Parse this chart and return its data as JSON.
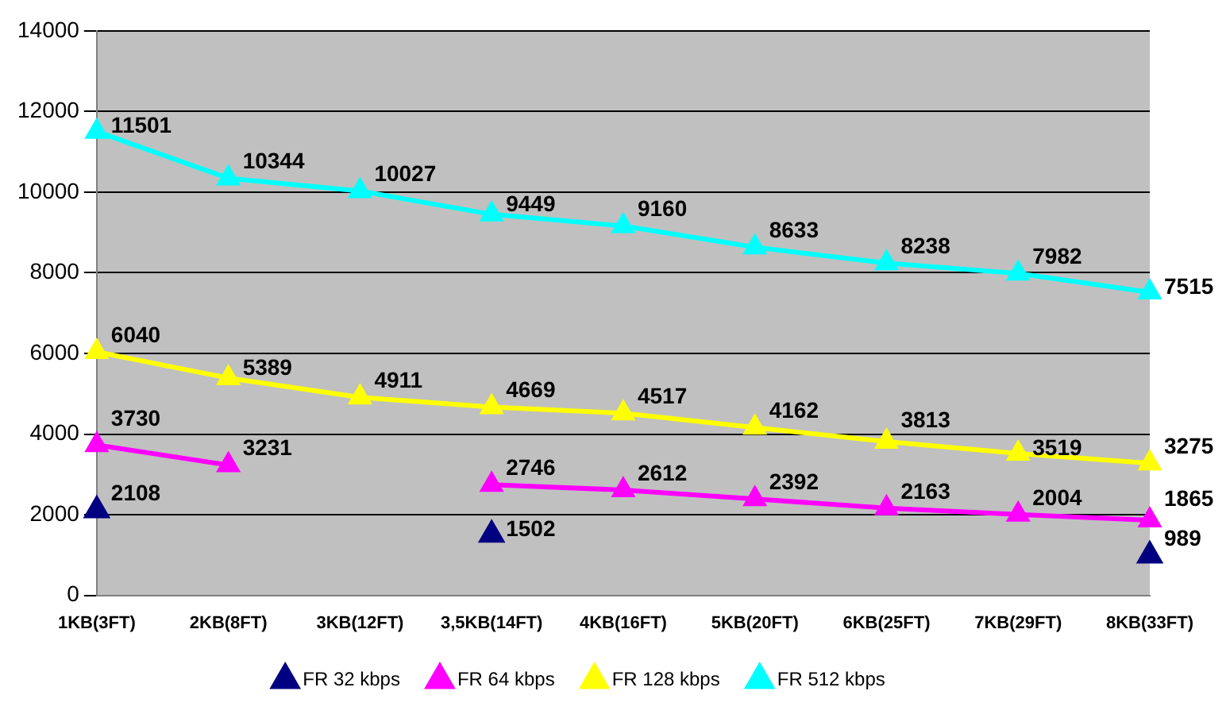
{
  "chart_data": {
    "type": "line",
    "categories": [
      "1KB(3FT)",
      "2KB(8FT)",
      "3KB(12FT)",
      "3,5KB(14FT)",
      "4KB(16FT)",
      "5KB(20FT)",
      "6KB(25FT)",
      "7KB(29FT)",
      "8KB(33FT)"
    ],
    "series": [
      {
        "name": "FR 32 kbps",
        "type": "scatter",
        "color": "#000080",
        "values": [
          2108,
          null,
          null,
          1502,
          null,
          null,
          null,
          null,
          989
        ]
      },
      {
        "name": "FR 64 kbps",
        "color": "#ff00ff",
        "values": [
          3730,
          3231,
          null,
          2746,
          2612,
          2392,
          2163,
          2004,
          1865
        ]
      },
      {
        "name": "FR 128 kbps",
        "color": "#ffff00",
        "values": [
          6040,
          5389,
          4911,
          4669,
          4517,
          4162,
          3813,
          3519,
          3275
        ]
      },
      {
        "name": "FR 512 kbps",
        "color": "#00ffff",
        "values": [
          11501,
          10344,
          10027,
          9449,
          9160,
          8633,
          8238,
          7982,
          7515
        ]
      }
    ],
    "ylim": [
      0,
      14000
    ],
    "yticks": [
      0,
      2000,
      4000,
      6000,
      8000,
      10000,
      12000,
      14000
    ],
    "grid": "y",
    "legend": "bottom",
    "marker": "triangle",
    "line_style": "solid",
    "data_labels": true
  }
}
